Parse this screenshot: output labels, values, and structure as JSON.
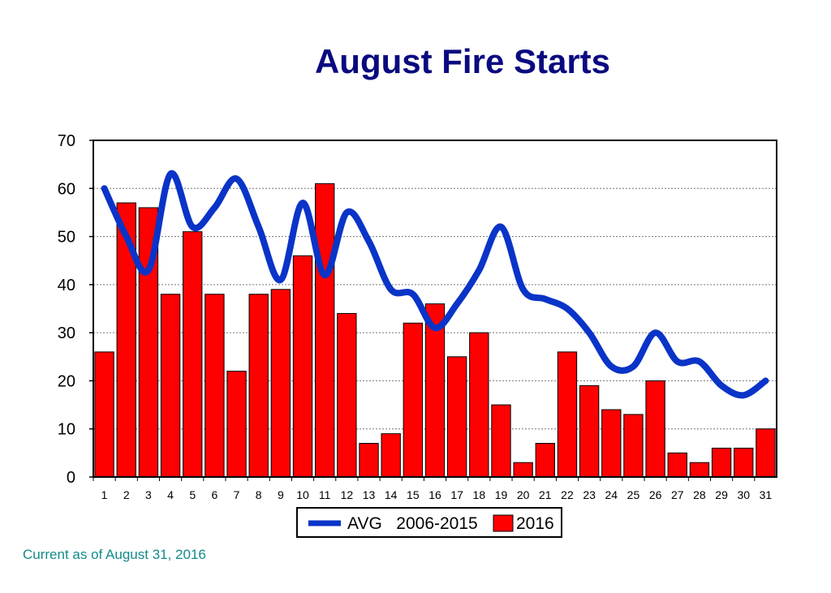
{
  "page": {
    "footnote": "Current as of August 31, 2016"
  },
  "chart_data": {
    "type": "bar",
    "title": "August Fire Starts",
    "xlabel": "",
    "ylabel": "",
    "ylim": [
      0,
      70
    ],
    "yticks": [
      0,
      10,
      20,
      30,
      40,
      50,
      60,
      70
    ],
    "grid": true,
    "legend_position": "bottom",
    "categories": [
      "1",
      "2",
      "3",
      "4",
      "5",
      "6",
      "7",
      "8",
      "9",
      "10",
      "11",
      "12",
      "13",
      "14",
      "15",
      "16",
      "17",
      "18",
      "19",
      "20",
      "21",
      "22",
      "23",
      "24",
      "25",
      "26",
      "27",
      "28",
      "29",
      "30",
      "31"
    ],
    "series": [
      {
        "name": "AVG   2006-2015",
        "type": "line",
        "color": "#0a34c8",
        "values": [
          60,
          50,
          43,
          63,
          52,
          56,
          62,
          52,
          41,
          57,
          42,
          55,
          49,
          39,
          38,
          31,
          36,
          43,
          52,
          39,
          37,
          35,
          30,
          23,
          23,
          30,
          24,
          24,
          19,
          17,
          20
        ]
      },
      {
        "name": "2016",
        "type": "bar",
        "color": "#ff0000",
        "values": [
          26,
          57,
          56,
          38,
          51,
          38,
          22,
          38,
          39,
          46,
          61,
          34,
          7,
          9,
          32,
          36,
          25,
          30,
          15,
          3,
          7,
          26,
          19,
          14,
          13,
          20,
          5,
          3,
          6,
          6,
          10
        ]
      }
    ]
  }
}
